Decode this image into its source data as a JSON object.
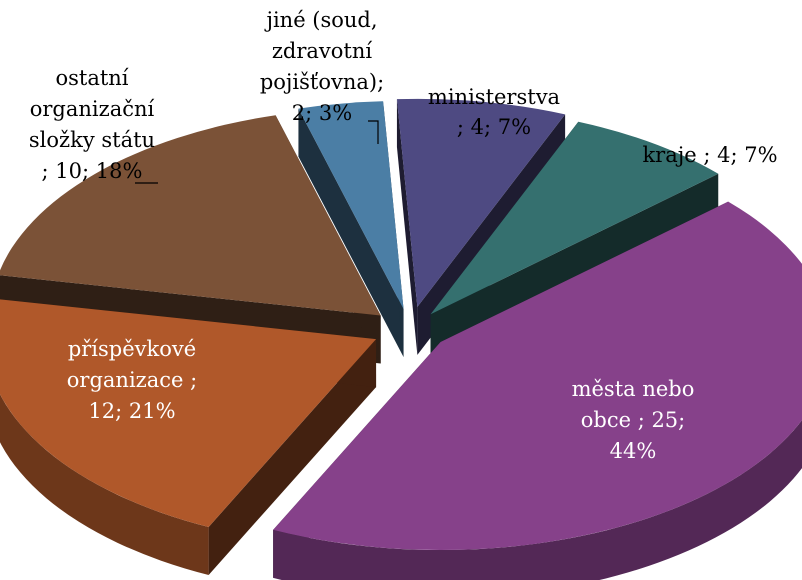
{
  "chart_data": {
    "type": "pie",
    "style": "3d-exploded",
    "title": "",
    "legend": "none",
    "slices": [
      {
        "name": "ministerstva",
        "value": 4,
        "percent": 7,
        "color": "#4e4a82",
        "label_lines": [
          "ministerstva",
          "; 4; 7%"
        ]
      },
      {
        "name": "kraje",
        "value": 4,
        "percent": 7,
        "color": "#35706f",
        "label_lines": [
          "kraje ; 4; 7%"
        ]
      },
      {
        "name": "města nebo obce",
        "value": 25,
        "percent": 44,
        "color": "#86418a",
        "label_lines": [
          "města nebo",
          "obce ; 25;",
          "44%"
        ]
      },
      {
        "name": "příspěvkové organizace",
        "value": 12,
        "percent": 21,
        "color": "#b0582a",
        "label_lines": [
          "příspěvkové",
          "organizace ;",
          "12; 21%"
        ]
      },
      {
        "name": "ostatní organizační složky státu",
        "value": 10,
        "percent": 18,
        "color": "#7b5237",
        "label_lines": [
          "ostatní",
          "organizační",
          "složky státu",
          "; 10; 18%"
        ]
      },
      {
        "name": "jiné (soud, zdravotní pojišťovna)",
        "value": 2,
        "percent": 3,
        "color": "#4b7ea5",
        "label_lines": [
          "jiné (soud,",
          "zdravotní",
          "pojišťovna);",
          "2; 3%"
        ]
      }
    ]
  }
}
